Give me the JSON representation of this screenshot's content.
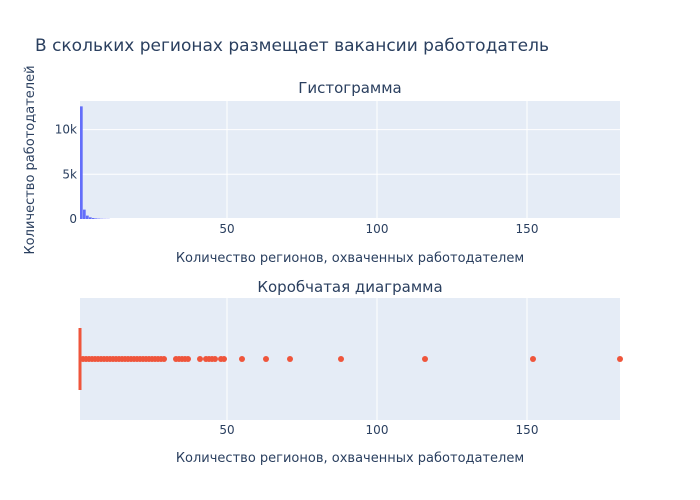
{
  "figure": {
    "title": "В скольких регионах размещает вакансии работодатель"
  },
  "chart_data": [
    {
      "type": "bar",
      "subtitle": "Гистограмма",
      "xlabel": "Количество регионов, охваченных работодателем",
      "ylabel": "Количество работодателей",
      "xlim": [
        1,
        181
      ],
      "ylim": [
        0,
        13200
      ],
      "x_ticks": [
        50,
        100,
        150
      ],
      "x_tick_labels": [
        "50",
        "100",
        "150"
      ],
      "y_ticks": [
        0,
        5000,
        10000
      ],
      "y_tick_labels": [
        "0",
        "5k",
        "10k"
      ],
      "bin_width": 1,
      "bins": [
        {
          "x": 1,
          "y": 12600
        },
        {
          "x": 2,
          "y": 1050
        },
        {
          "x": 3,
          "y": 380
        },
        {
          "x": 4,
          "y": 190
        },
        {
          "x": 5,
          "y": 110
        },
        {
          "x": 6,
          "y": 70
        },
        {
          "x": 7,
          "y": 50
        },
        {
          "x": 8,
          "y": 35
        },
        {
          "x": 9,
          "y": 25
        },
        {
          "x": 10,
          "y": 20
        }
      ],
      "color": "#636efa",
      "grid": true
    },
    {
      "type": "box",
      "subtitle": "Коробчатая диаграмма",
      "xlabel": "Количество регионов, охваченных работодателем",
      "xlim": [
        1,
        181
      ],
      "x_ticks": [
        50,
        100,
        150
      ],
      "x_tick_labels": [
        "50",
        "100",
        "150"
      ],
      "median": 1,
      "q1": 1,
      "q3": 1,
      "whisker_low": 1,
      "whisker_high": 1,
      "outliers": [
        2,
        3,
        4,
        5,
        6,
        7,
        8,
        9,
        10,
        11,
        12,
        13,
        14,
        15,
        16,
        17,
        18,
        19,
        20,
        21,
        22,
        23,
        24,
        25,
        26,
        27,
        28,
        29,
        33,
        34,
        35,
        36,
        37,
        41,
        43,
        44,
        45,
        46,
        48,
        49,
        55,
        63,
        71,
        88,
        116,
        152,
        181
      ],
      "color": "#ef553b",
      "grid": true
    }
  ]
}
